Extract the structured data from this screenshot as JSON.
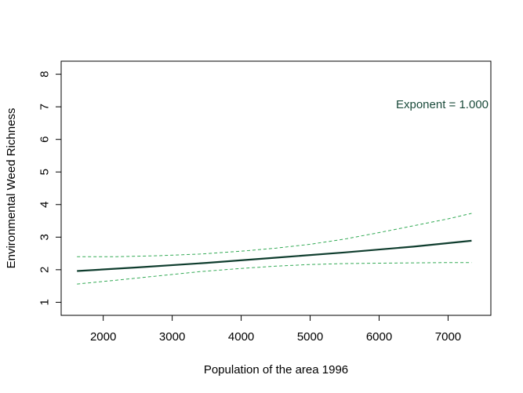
{
  "chart_data": {
    "type": "line",
    "title": "",
    "xlabel": "Population of the area 1996",
    "ylabel": "Environmental Weed Richness",
    "xlim": [
      1390,
      7620
    ],
    "ylim": [
      0.6,
      8.4
    ],
    "xticks": [
      2000,
      3000,
      4000,
      5000,
      6000,
      7000
    ],
    "yticks": [
      1,
      2,
      3,
      4,
      5,
      6,
      7,
      8
    ],
    "grid": false,
    "annotation": {
      "text": "Exponent =  1.000",
      "color": "#1a4a3a"
    },
    "series": [
      {
        "role": "fit",
        "color": "#0f3d2e",
        "style": "solid",
        "x": [
          1620,
          2500,
          3500,
          4500,
          5500,
          6500,
          7340
        ],
        "y": [
          1.96,
          2.07,
          2.21,
          2.37,
          2.53,
          2.71,
          2.89
        ]
      },
      {
        "role": "upper-confidence",
        "color": "#33aa55",
        "style": "dashed",
        "x": [
          1620,
          2200,
          2800,
          3400,
          4000,
          4500,
          5000,
          5500,
          6000,
          6500,
          7000,
          7340
        ],
        "y": [
          2.4,
          2.4,
          2.43,
          2.48,
          2.57,
          2.66,
          2.78,
          2.94,
          3.14,
          3.35,
          3.56,
          3.73
        ]
      },
      {
        "role": "lower-confidence",
        "color": "#33aa55",
        "style": "dashed",
        "x": [
          1620,
          2200,
          2800,
          3400,
          4000,
          4500,
          5000,
          5500,
          6000,
          6500,
          7000,
          7340
        ],
        "y": [
          1.56,
          1.68,
          1.81,
          1.94,
          2.04,
          2.11,
          2.16,
          2.19,
          2.2,
          2.21,
          2.22,
          2.22
        ]
      }
    ]
  }
}
